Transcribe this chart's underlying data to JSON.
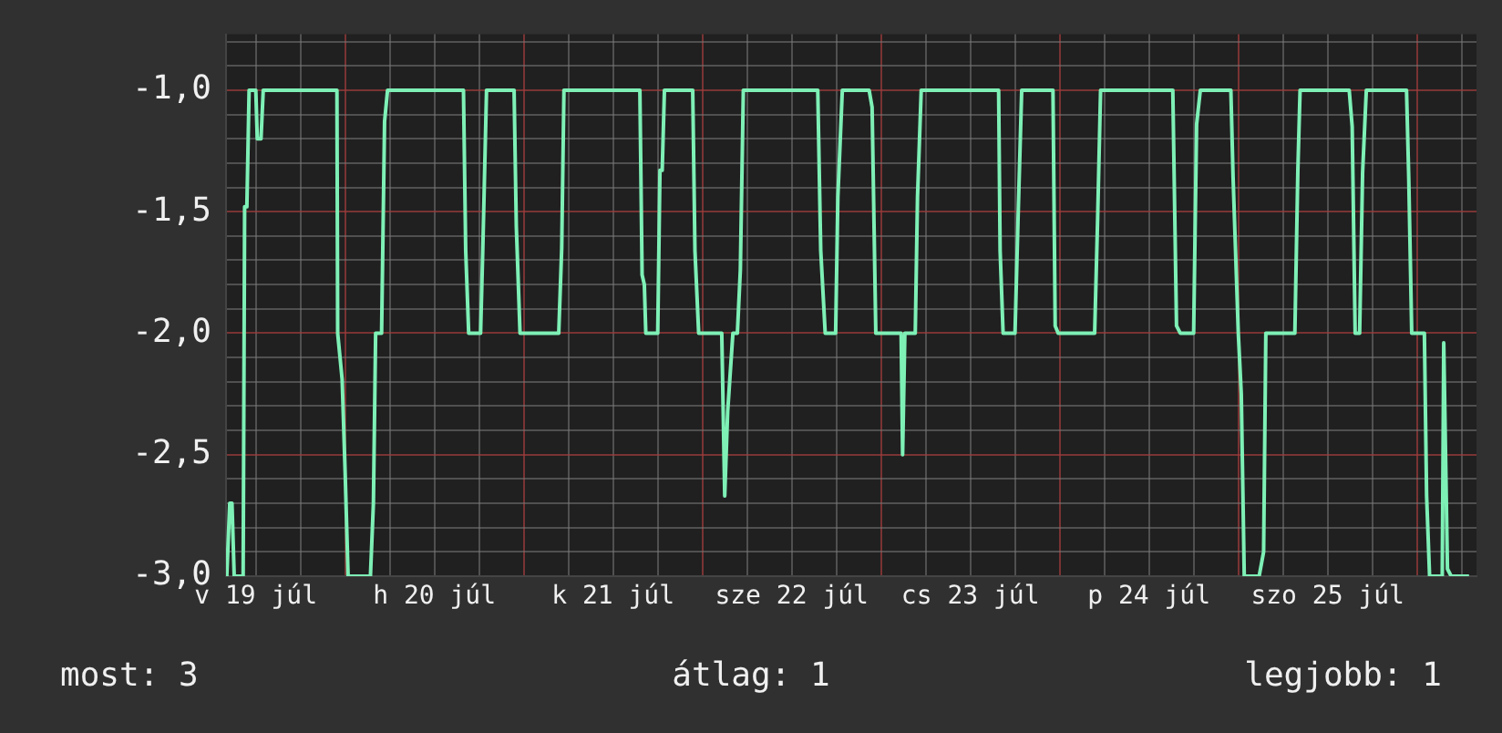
{
  "chart_data": {
    "type": "line",
    "x": [
      "--07-19T08:06",
      "--07-19T08:30",
      "--07-19T08:48",
      "--07-19T09:06",
      "--07-19T10:18",
      "--07-19T10:30",
      "--07-19T10:48",
      "--07-19T11:06",
      "--07-19T12:00",
      "--07-19T12:12",
      "--07-19T12:42",
      "--07-19T13:00",
      "--07-19T22:54",
      "--07-19T23:00",
      "--07-19T23:36",
      "--07-20T00:00",
      "--07-20T00:24",
      "--07-20T03:24",
      "--07-20T03:48",
      "--07-20T04:06",
      "--07-20T04:54",
      "--07-20T05:18",
      "--07-20T05:42",
      "--07-20T15:54",
      "--07-20T16:12",
      "--07-20T16:36",
      "--07-20T18:12",
      "--07-20T18:30",
      "--07-20T19:00",
      "--07-20T22:42",
      "--07-20T23:00",
      "--07-20T23:30",
      "--07-21T04:42",
      "--07-21T05:06",
      "--07-21T05:24",
      "--07-21T15:36",
      "--07-21T15:54",
      "--07-21T16:12",
      "--07-21T16:24",
      "--07-21T18:00",
      "--07-21T18:18",
      "--07-21T18:36",
      "--07-21T18:54",
      "--07-21T22:42",
      "--07-21T23:00",
      "--07-21T23:30",
      "--07-22T02:36",
      "--07-22T03:00",
      "--07-22T03:24",
      "--07-22T04:06",
      "--07-22T04:42",
      "--07-22T05:06",
      "--07-22T05:30",
      "--07-22T15:30",
      "--07-22T15:54",
      "--07-22T16:30",
      "--07-22T17:54",
      "--07-22T18:12",
      "--07-22T18:48",
      "--07-22T22:24",
      "--07-22T22:48",
      "--07-22T23:18",
      "--07-23T02:42",
      "--07-23T02:54",
      "--07-23T03:12",
      "--07-23T04:36",
      "--07-23T04:54",
      "--07-23T05:24",
      "--07-23T15:48",
      "--07-23T16:00",
      "--07-23T16:24",
      "--07-23T18:00",
      "--07-23T18:24",
      "--07-23T18:54",
      "--07-23T23:06",
      "--07-23T23:24",
      "--07-23T23:48",
      "--07-24T04:42",
      "--07-24T05:06",
      "--07-24T05:30",
      "--07-24T15:12",
      "--07-24T15:42",
      "--07-24T16:12",
      "--07-24T18:00",
      "--07-24T18:24",
      "--07-24T18:54",
      "--07-24T23:00",
      "--07-24T23:18",
      "--07-25T00:00",
      "--07-25T00:24",
      "--07-25T00:48",
      "--07-25T02:48",
      "--07-25T03:24",
      "--07-25T03:42",
      "--07-25T07:36",
      "--07-25T08:00",
      "--07-25T08:18",
      "--07-25T14:54",
      "--07-25T15:18",
      "--07-25T15:42",
      "--07-25T16:18",
      "--07-25T16:42",
      "--07-25T17:12",
      "--07-25T22:36",
      "--07-25T22:54",
      "--07-25T23:18",
      "--07-26T01:00",
      "--07-26T01:18",
      "--07-26T01:42",
      "--07-26T03:24",
      "--07-26T03:36",
      "--07-26T04:06",
      "--07-26T04:36",
      "--07-26T07:00"
    ],
    "values": [
      -3,
      -2.7,
      -2.7,
      -3,
      -3,
      -1.48,
      -1.48,
      -1,
      -1,
      -1.2,
      -1.2,
      -1,
      -1,
      -2.0,
      -2.19,
      -2.57,
      -3,
      -3,
      -2.7,
      -2,
      -2,
      -1.13,
      -1,
      -1,
      -1.66,
      -2,
      -2,
      -1.65,
      -1,
      -1,
      -1.56,
      -2,
      -2,
      -1.65,
      -1,
      -1,
      -1.76,
      -1.8,
      -2,
      -2,
      -1.33,
      -1.33,
      -1,
      -1,
      -1.66,
      -2,
      -2,
      -2.67,
      -2.32,
      -2,
      -2,
      -1.74,
      -1,
      -1,
      -1.66,
      -2,
      -2,
      -1.44,
      -1,
      -1,
      -1.07,
      -2,
      -2,
      -2.5,
      -2,
      -2,
      -1.44,
      -1,
      -1,
      -1.66,
      -2,
      -2,
      -1.54,
      -1,
      -1,
      -1.97,
      -2,
      -2,
      -1.53,
      -1,
      -1,
      -1.97,
      -2,
      -2,
      -1.14,
      -1,
      -1,
      -1.36,
      -2,
      -2.25,
      -3,
      -3,
      -2.9,
      -2,
      -2,
      -1.33,
      -1,
      -1,
      -1.15,
      -2,
      -2,
      -1.34,
      -1,
      -1,
      -1.36,
      -2,
      -2,
      -2.67,
      -3,
      -3,
      -2.04,
      -2.97,
      -3,
      -3
    ],
    "color": "#7ef0b6",
    "xlim": [
      "--07-19T08:00",
      "--07-26T08:00"
    ],
    "xticks": [
      {
        "value": "--07-19T12:00",
        "label": "v 19 júl"
      },
      {
        "value": "--07-19T18:00",
        "label": null
      },
      {
        "value": "--07-20T00:00",
        "label": null
      },
      {
        "value": "--07-20T06:00",
        "label": null
      },
      {
        "value": "--07-20T12:00",
        "label": "h 20 júl"
      },
      {
        "value": "--07-20T18:00",
        "label": null
      },
      {
        "value": "--07-21T00:00",
        "label": null
      },
      {
        "value": "--07-21T06:00",
        "label": null
      },
      {
        "value": "--07-21T12:00",
        "label": "k 21 júl"
      },
      {
        "value": "--07-21T18:00",
        "label": null
      },
      {
        "value": "--07-22T00:00",
        "label": null
      },
      {
        "value": "--07-22T06:00",
        "label": null
      },
      {
        "value": "--07-22T12:00",
        "label": "sze 22 júl"
      },
      {
        "value": "--07-22T18:00",
        "label": null
      },
      {
        "value": "--07-23T00:00",
        "label": null
      },
      {
        "value": "--07-23T06:00",
        "label": null
      },
      {
        "value": "--07-23T12:00",
        "label": "cs 23 júl"
      },
      {
        "value": "--07-23T18:00",
        "label": null
      },
      {
        "value": "--07-24T00:00",
        "label": null
      },
      {
        "value": "--07-24T06:00",
        "label": null
      },
      {
        "value": "--07-24T12:00",
        "label": "p 24 júl"
      },
      {
        "value": "--07-24T18:00",
        "label": null
      },
      {
        "value": "--07-25T00:00",
        "label": null
      },
      {
        "value": "--07-25T06:00",
        "label": null
      },
      {
        "value": "--07-25T12:00",
        "label": "szo 25 júl"
      },
      {
        "value": "--07-25T18:00",
        "label": null
      },
      {
        "value": "--07-26T00:00",
        "label": null
      },
      {
        "value": "--07-26T06:00",
        "label": null
      }
    ],
    "ylim": [
      -3,
      -0.77
    ],
    "yticks": [
      {
        "value": -3,
        "label": "-3,0"
      },
      {
        "value": -2.9,
        "label": null
      },
      {
        "value": -2.8,
        "label": null
      },
      {
        "value": -2.7,
        "label": null
      },
      {
        "value": -2.6,
        "label": null
      },
      {
        "value": -2.5,
        "label": "-2,5"
      },
      {
        "value": -2.4,
        "label": null
      },
      {
        "value": -2.3,
        "label": null
      },
      {
        "value": -2.2,
        "label": null
      },
      {
        "value": -2.1,
        "label": null
      },
      {
        "value": -2,
        "label": "-2,0"
      },
      {
        "value": -1.9,
        "label": null
      },
      {
        "value": -1.8,
        "label": null
      },
      {
        "value": -1.7,
        "label": null
      },
      {
        "value": -1.6,
        "label": null
      },
      {
        "value": -1.5,
        "label": "-1,5"
      },
      {
        "value": -1.4,
        "label": null
      },
      {
        "value": -1.3,
        "label": null
      },
      {
        "value": -1.2,
        "label": null
      },
      {
        "value": -1.1,
        "label": null
      },
      {
        "value": -1,
        "label": "-1,0"
      },
      {
        "value": -0.9,
        "label": null
      },
      {
        "value": -0.8,
        "label": null
      }
    ],
    "grid": true,
    "annotations": [
      "most: 3",
      "átlag: 1",
      "legjobb: 1"
    ]
  }
}
